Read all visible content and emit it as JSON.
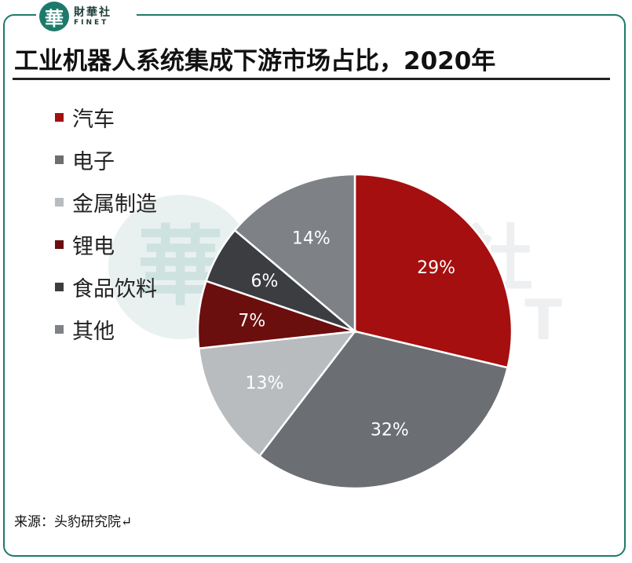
{
  "brand": {
    "glyph": "華",
    "name_cn": "財華社",
    "name_en": "FINET"
  },
  "watermark": {
    "glyph": "華",
    "cn": "財華社",
    "en": "FINET"
  },
  "chart_data": {
    "type": "pie",
    "title": "工业机器人系统集成下游市场占比，2020年",
    "legend_position": "left",
    "categories": [
      "汽车",
      "电子",
      "金属制造",
      "锂电",
      "食品饮料",
      "其他"
    ],
    "values": [
      29,
      32,
      13,
      7,
      6,
      14
    ],
    "labels": [
      "29%",
      "32%",
      "13%",
      "7%",
      "6%",
      "14%"
    ],
    "colors": [
      "#a50f0f",
      "#6b6e72",
      "#b9bcbf",
      "#6b0e0e",
      "#3b3d40",
      "#7e8185"
    ]
  },
  "source": "来源：头豹研究院↵"
}
